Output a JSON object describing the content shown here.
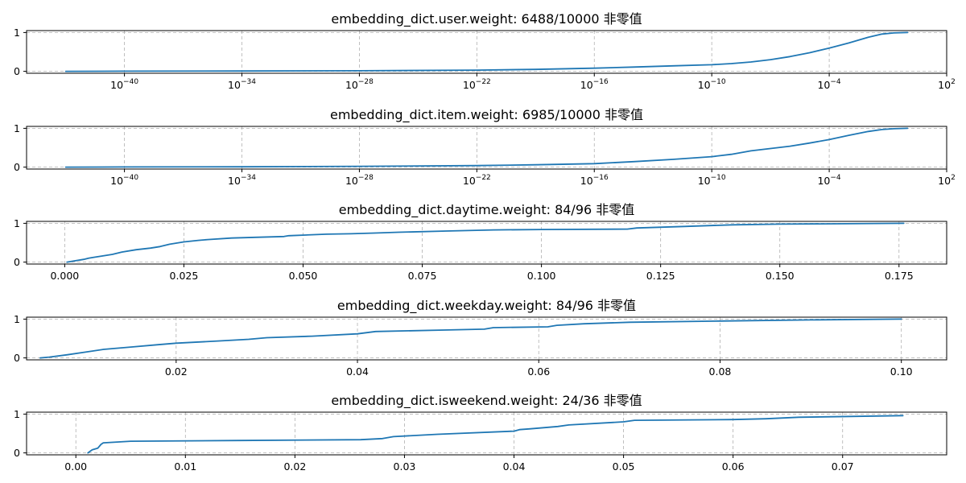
{
  "chart_data": [
    {
      "type": "line",
      "title": "embedding_dict.user.weight: 6488/10000 非零值",
      "xscale": "log",
      "xlim": [
        1e-45,
        100
      ],
      "ylim": [
        0,
        1
      ],
      "yticks": [
        0,
        1
      ],
      "xticks": [
        {
          "value": 1e-40,
          "base": "10",
          "exp": "−40"
        },
        {
          "value": 1e-34,
          "base": "10",
          "exp": "−34"
        },
        {
          "value": 1e-28,
          "base": "10",
          "exp": "−28"
        },
        {
          "value": 1e-22,
          "base": "10",
          "exp": "−22"
        },
        {
          "value": 1e-16,
          "base": "10",
          "exp": "−16"
        },
        {
          "value": 1e-10,
          "base": "10",
          "exp": "−10"
        },
        {
          "value": 0.0001,
          "base": "10",
          "exp": "−4"
        },
        {
          "value": 100,
          "base": "10",
          "exp": "2"
        }
      ],
      "grid": true,
      "color": "#1f77b4",
      "series": [
        {
          "x": [
            1e-43,
            1e-40,
            1e-34,
            1e-28,
            1e-22,
            1e-19,
            1e-16,
            1e-14,
            1e-12,
            1e-10,
            1e-09,
            1e-08,
            1e-07,
            1e-06,
            1e-05,
            0.0001,
            0.001,
            0.01,
            0.05,
            0.2,
            1.0
          ],
          "y": [
            0.0,
            0.003,
            0.008,
            0.015,
            0.03,
            0.05,
            0.08,
            0.11,
            0.14,
            0.17,
            0.2,
            0.24,
            0.3,
            0.38,
            0.48,
            0.6,
            0.73,
            0.88,
            0.96,
            0.99,
            1.0
          ]
        }
      ]
    },
    {
      "type": "line",
      "title": "embedding_dict.item.weight: 6985/10000 非零值",
      "xscale": "log",
      "xlim": [
        1e-45,
        100
      ],
      "ylim": [
        0,
        1
      ],
      "yticks": [
        0,
        1
      ],
      "xticks": [
        {
          "value": 1e-40,
          "base": "10",
          "exp": "−40"
        },
        {
          "value": 1e-34,
          "base": "10",
          "exp": "−34"
        },
        {
          "value": 1e-28,
          "base": "10",
          "exp": "−28"
        },
        {
          "value": 1e-22,
          "base": "10",
          "exp": "−22"
        },
        {
          "value": 1e-16,
          "base": "10",
          "exp": "−16"
        },
        {
          "value": 1e-10,
          "base": "10",
          "exp": "−10"
        },
        {
          "value": 0.0001,
          "base": "10",
          "exp": "−4"
        },
        {
          "value": 100,
          "base": "10",
          "exp": "2"
        }
      ],
      "grid": true,
      "color": "#1f77b4",
      "series": [
        {
          "x": [
            1e-43,
            1e-40,
            1e-34,
            1e-28,
            1e-22,
            1e-19,
            1e-16,
            1e-14,
            1e-12,
            1e-10,
            1e-09,
            1e-08,
            1e-07,
            1e-06,
            1e-05,
            0.0001,
            0.001,
            0.01,
            0.05,
            0.2,
            1.0
          ],
          "y": [
            0.0,
            0.003,
            0.008,
            0.02,
            0.04,
            0.06,
            0.09,
            0.14,
            0.2,
            0.27,
            0.33,
            0.42,
            0.48,
            0.54,
            0.62,
            0.71,
            0.82,
            0.92,
            0.97,
            0.99,
            1.0
          ]
        }
      ]
    },
    {
      "type": "line",
      "title": "embedding_dict.daytime.weight: 84/96 非零值",
      "xscale": "linear",
      "xlim": [
        -0.008,
        0.185
      ],
      "ylim": [
        0,
        1
      ],
      "yticks": [
        0,
        1
      ],
      "xticks": [
        {
          "value": 0.0,
          "label": "0.000"
        },
        {
          "value": 0.025,
          "label": "0.025"
        },
        {
          "value": 0.05,
          "label": "0.050"
        },
        {
          "value": 0.075,
          "label": "0.075"
        },
        {
          "value": 0.1,
          "label": "0.100"
        },
        {
          "value": 0.125,
          "label": "0.125"
        },
        {
          "value": 0.15,
          "label": "0.150"
        },
        {
          "value": 0.175,
          "label": "0.175"
        }
      ],
      "grid": true,
      "color": "#1f77b4",
      "series": [
        {
          "x": [
            0.0005,
            0.002,
            0.004,
            0.005,
            0.006,
            0.008,
            0.01,
            0.012,
            0.015,
            0.018,
            0.02,
            0.022,
            0.025,
            0.028,
            0.03,
            0.035,
            0.04,
            0.046,
            0.047,
            0.055,
            0.06,
            0.065,
            0.07,
            0.08,
            0.09,
            0.1,
            0.118,
            0.12,
            0.13,
            0.14,
            0.15,
            0.176
          ],
          "y": [
            0.0,
            0.03,
            0.07,
            0.1,
            0.12,
            0.16,
            0.2,
            0.26,
            0.32,
            0.36,
            0.4,
            0.46,
            0.52,
            0.56,
            0.58,
            0.62,
            0.64,
            0.66,
            0.68,
            0.72,
            0.73,
            0.75,
            0.77,
            0.8,
            0.83,
            0.84,
            0.85,
            0.88,
            0.92,
            0.96,
            0.98,
            1.0
          ]
        }
      ]
    },
    {
      "type": "line",
      "title": "embedding_dict.weekday.weight: 84/96 非零值",
      "xscale": "linear",
      "xlim": [
        0.0035,
        0.105
      ],
      "ylim": [
        0,
        1
      ],
      "yticks": [
        0,
        1
      ],
      "xticks": [
        {
          "value": 0.02,
          "label": "0.02"
        },
        {
          "value": 0.04,
          "label": "0.04"
        },
        {
          "value": 0.06,
          "label": "0.06"
        },
        {
          "value": 0.08,
          "label": "0.08"
        },
        {
          "value": 0.1,
          "label": "0.10"
        }
      ],
      "grid": true,
      "color": "#1f77b4",
      "series": [
        {
          "x": [
            0.005,
            0.006,
            0.008,
            0.01,
            0.012,
            0.015,
            0.018,
            0.02,
            0.025,
            0.028,
            0.03,
            0.035,
            0.04,
            0.042,
            0.05,
            0.054,
            0.055,
            0.061,
            0.062,
            0.065,
            0.07,
            0.08,
            0.09,
            0.1
          ],
          "y": [
            0.0,
            0.02,
            0.08,
            0.15,
            0.22,
            0.28,
            0.34,
            0.38,
            0.44,
            0.48,
            0.52,
            0.56,
            0.62,
            0.68,
            0.72,
            0.74,
            0.78,
            0.8,
            0.84,
            0.88,
            0.92,
            0.95,
            0.98,
            1.0
          ]
        }
      ]
    },
    {
      "type": "line",
      "title": "embedding_dict.isweekend.weight: 24/36 非零值",
      "xscale": "linear",
      "xlim": [
        -0.0045,
        0.0795
      ],
      "ylim": [
        0,
        1
      ],
      "yticks": [
        0,
        1
      ],
      "xticks": [
        {
          "value": 0.0,
          "label": "0.00"
        },
        {
          "value": 0.01,
          "label": "0.01"
        },
        {
          "value": 0.02,
          "label": "0.02"
        },
        {
          "value": 0.03,
          "label": "0.03"
        },
        {
          "value": 0.04,
          "label": "0.04"
        },
        {
          "value": 0.05,
          "label": "0.05"
        },
        {
          "value": 0.06,
          "label": "0.06"
        },
        {
          "value": 0.07,
          "label": "0.07"
        }
      ],
      "grid": true,
      "color": "#1f77b4",
      "series": [
        {
          "x": [
            0.0011,
            0.0015,
            0.002,
            0.0023,
            0.0025,
            0.005,
            0.015,
            0.026,
            0.028,
            0.029,
            0.033,
            0.04,
            0.0405,
            0.0415,
            0.044,
            0.045,
            0.05,
            0.051,
            0.06,
            0.063,
            0.066,
            0.0755
          ],
          "y": [
            0.0,
            0.08,
            0.12,
            0.22,
            0.26,
            0.3,
            0.32,
            0.34,
            0.37,
            0.42,
            0.48,
            0.56,
            0.6,
            0.62,
            0.68,
            0.72,
            0.8,
            0.84,
            0.86,
            0.88,
            0.92,
            0.96
          ]
        }
      ]
    }
  ]
}
